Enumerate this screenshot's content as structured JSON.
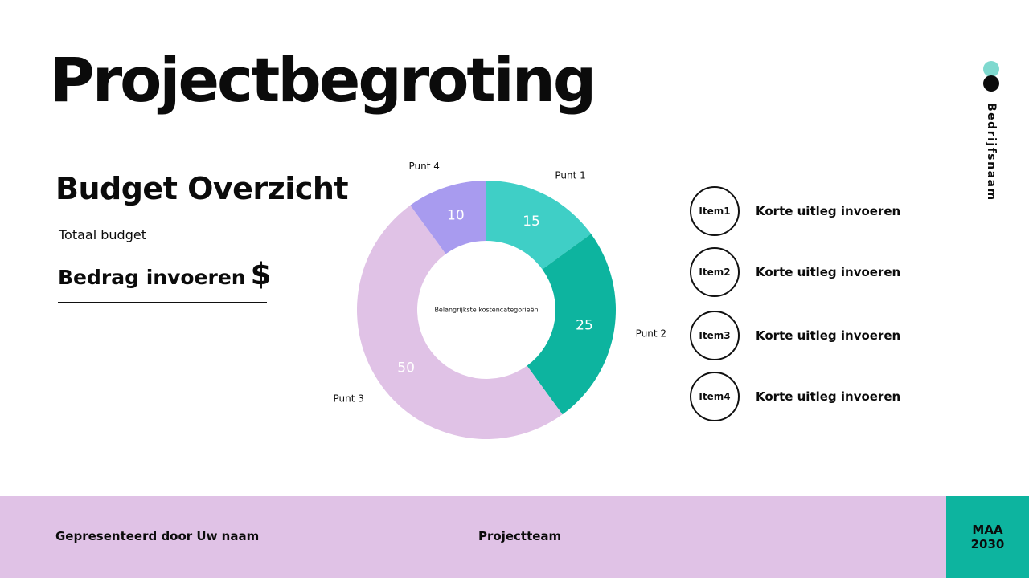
{
  "title": "Projectbegroting",
  "company": "Bedrijfsnaam",
  "overview": {
    "heading": "Budget Overzicht",
    "total_label": "Totaal budget",
    "amount_placeholder": "Bedrag invoeren",
    "currency": "$"
  },
  "chart_data": {
    "type": "pie",
    "title": "Belangrijkste kostencategorieën",
    "categories": [
      "Punt 1",
      "Punt 2",
      "Punt 3",
      "Punt 4"
    ],
    "values": [
      15,
      25,
      50,
      10
    ],
    "colors": [
      "#3fcfc6",
      "#0db49f",
      "#e0c2e6",
      "#a89bef"
    ],
    "donut": true,
    "legend": "none"
  },
  "items": [
    {
      "label": "Item1",
      "description": "Korte uitleg invoeren"
    },
    {
      "label": "Item2",
      "description": "Korte uitleg invoeren"
    },
    {
      "label": "Item3",
      "description": "Korte uitleg invoeren"
    },
    {
      "label": "Item4",
      "description": "Korte uitleg invoeren"
    }
  ],
  "footer": {
    "presenter": "Gepresenteerd door Uw naam",
    "team": "Projectteam",
    "date_line1": "MAA",
    "date_line2": "2030"
  },
  "colors": {
    "accent_teal": "#0db49f",
    "light_teal": "#7fd9cf",
    "lavender": "#e0c2e6",
    "violet": "#a89bef"
  }
}
